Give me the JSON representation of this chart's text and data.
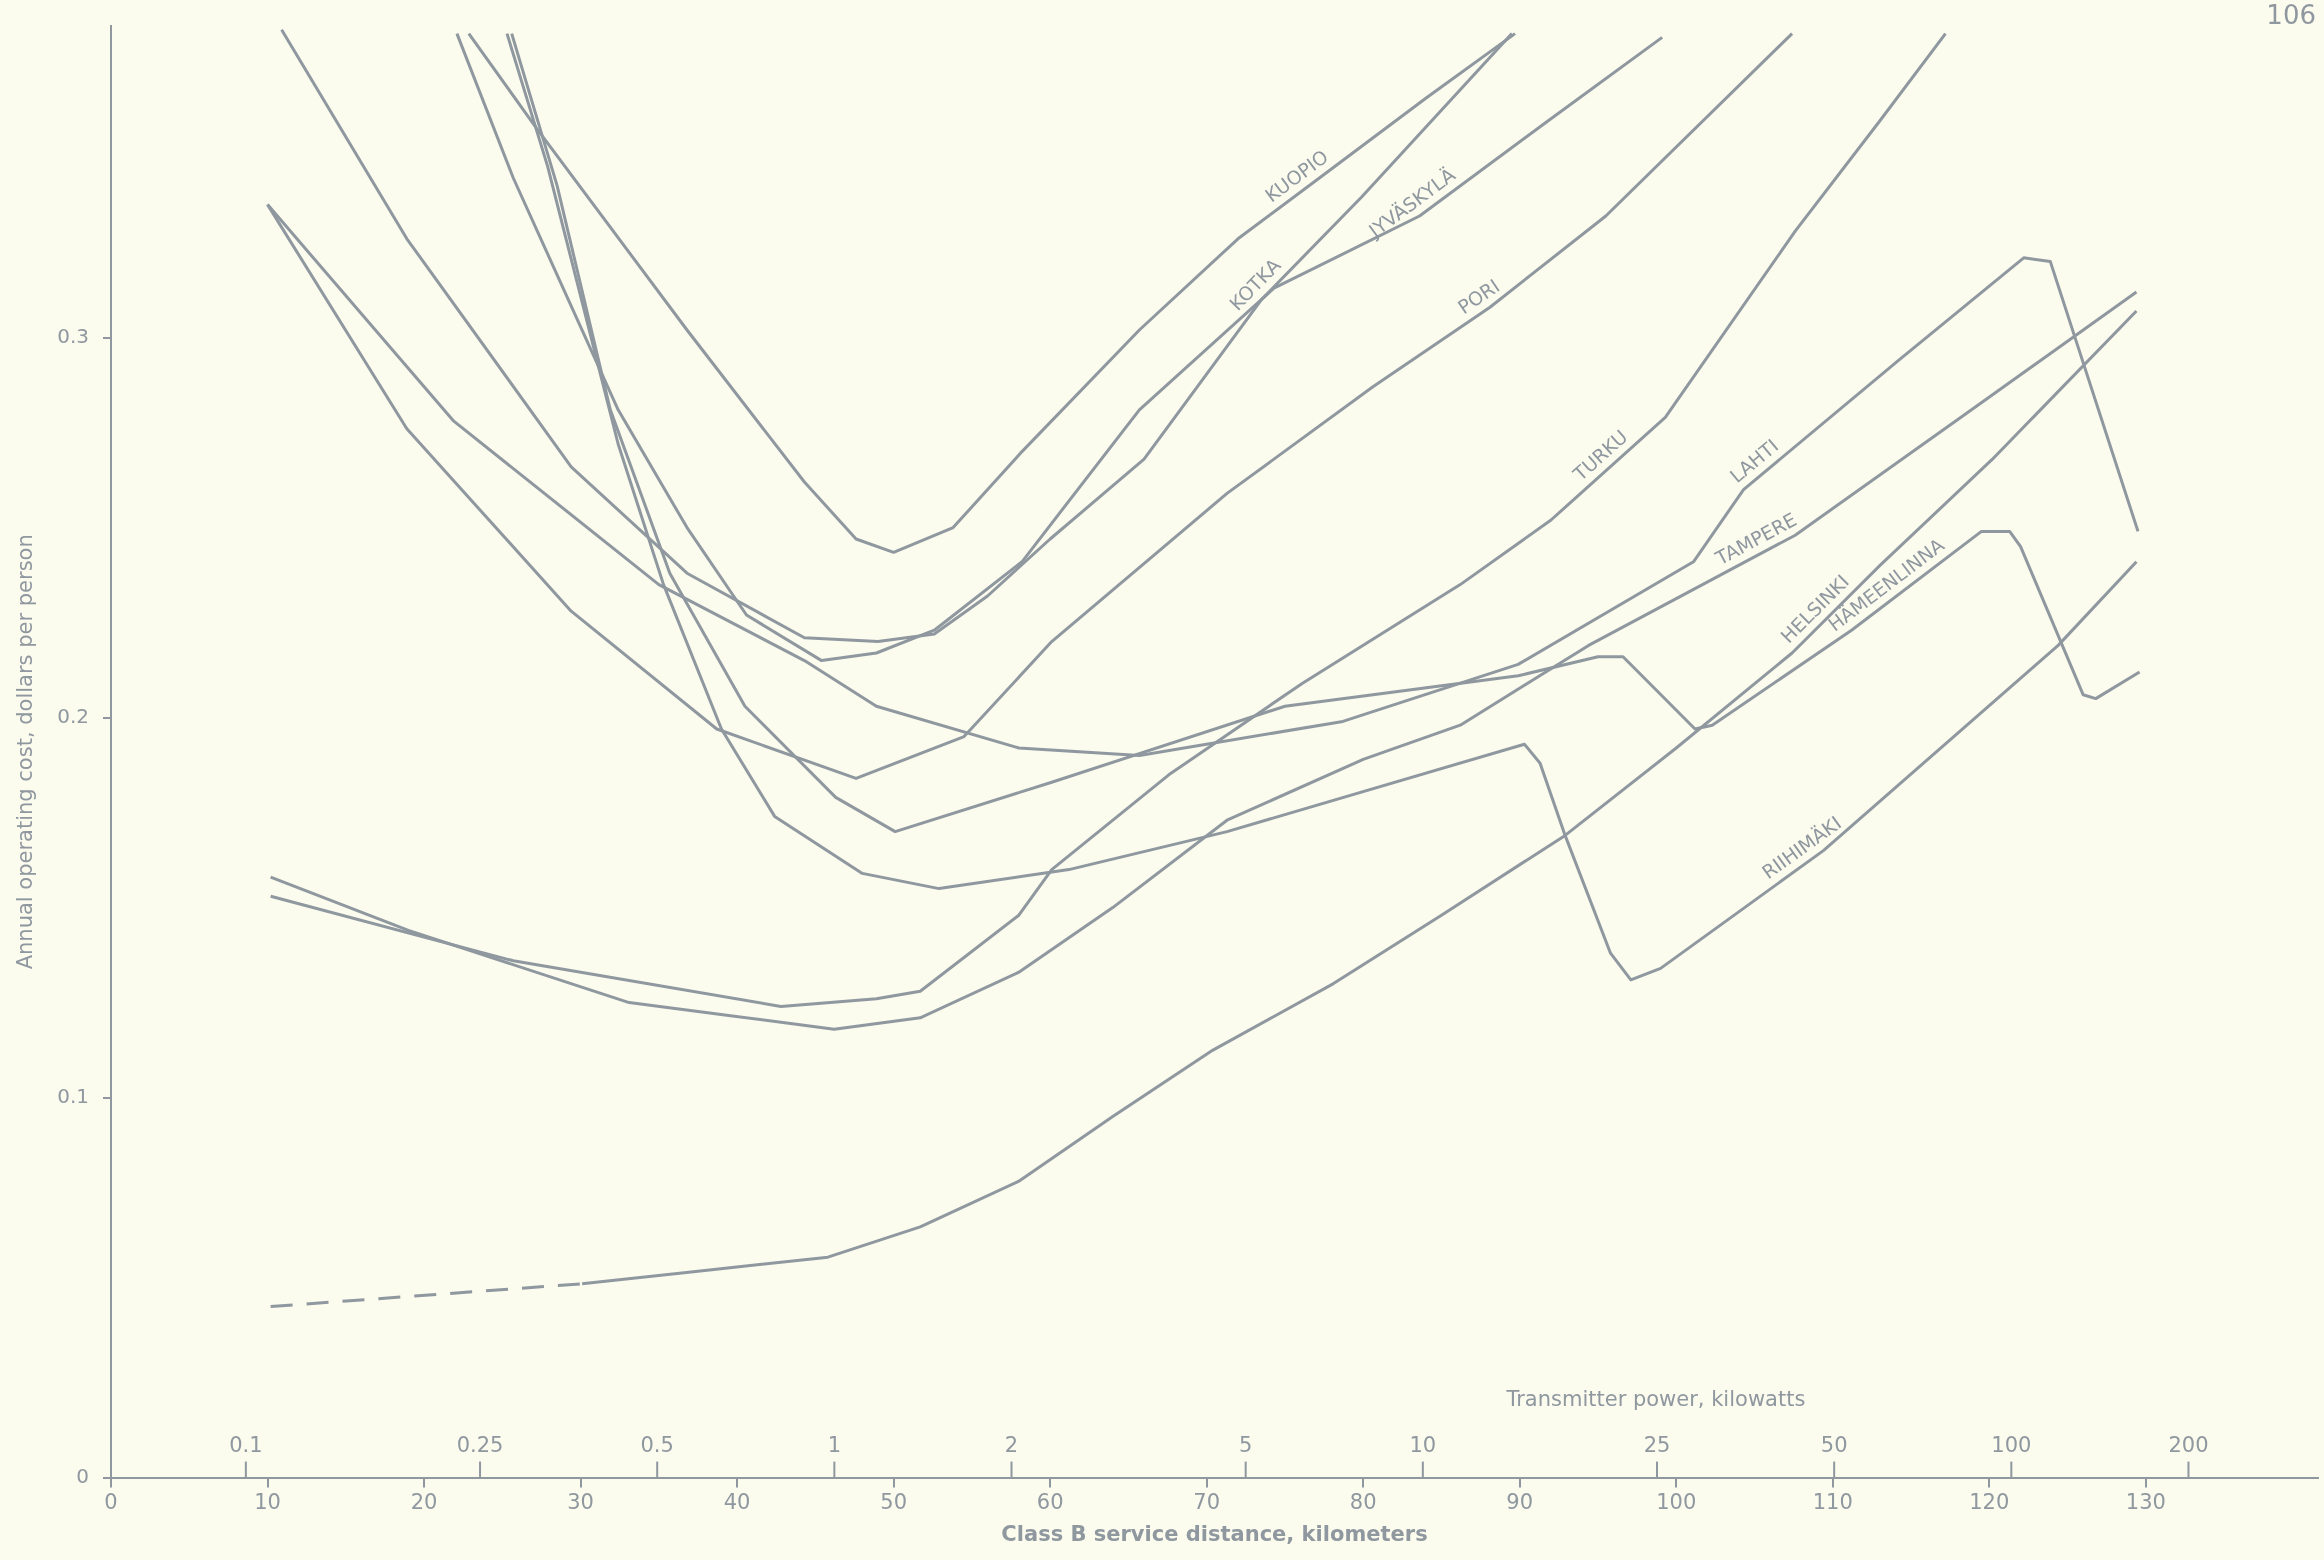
{
  "chart_data": {
    "type": "line",
    "xlabel": "Class B service distance, kilometers",
    "ylabel": "Annual operating cost, dollars per person",
    "x2label": "Transmitter power, kilowatts",
    "xlim": [
      0,
      141
    ],
    "xticks": [
      0,
      10,
      20,
      30,
      40,
      50,
      60,
      70,
      80,
      90,
      100,
      110,
      120,
      130
    ],
    "x2lim": [
      0.059,
      332
    ],
    "x2ticks": [
      0.1,
      0.25,
      0.5,
      1,
      2,
      5,
      10,
      25,
      50,
      100,
      200
    ],
    "log": "x2",
    "ylim": [
      0,
      0.382
    ],
    "yticks": [
      0,
      0.1,
      0.2,
      0.3
    ],
    "marker": "none",
    "series": [
      {
        "name": "KUOPIO",
        "color": "#8f979f",
        "x": [
          22.86,
          27.2,
          36.8,
          44.3,
          47.6,
          50.0,
          53.8,
          58.2,
          65.7,
          72.0,
          77.2,
          84.0,
          89.7
        ],
        "values": [
          0.38,
          0.355,
          0.302,
          0.262,
          0.247,
          0.2435,
          0.25,
          0.27,
          0.302,
          0.326,
          0.342,
          0.363,
          0.38
        ]
      },
      {
        "name": "KOTKA",
        "color": "#8f979f",
        "x": [
          10.9,
          18.9,
          29.4,
          36.8,
          44.3,
          49.0,
          52.6,
          56,
          60,
          66,
          73.5,
          79.9,
          89.5
        ],
        "values": [
          0.381,
          0.326,
          0.266,
          0.238,
          0.221,
          0.22,
          0.222,
          0.232,
          0.247,
          0.268,
          0.31,
          0.337,
          0.38
        ]
      },
      {
        "name": "JYVÄSKYLÄ",
        "color": "#8f979f",
        "x": [
          22.1,
          25.7,
          32.4,
          36.8,
          40.6,
          45.4,
          48.9,
          52.6,
          58.2,
          65.7,
          74.3,
          83.6,
          91.8,
          99.1
        ],
        "values": [
          0.38,
          0.342,
          0.281,
          0.25,
          0.227,
          0.215,
          0.217,
          0.223,
          0.241,
          0.281,
          0.313,
          0.332,
          0.357,
          0.379
        ]
      },
      {
        "name": "PORI",
        "color": "#8f979f",
        "x": [
          10,
          18.9,
          29.4,
          38.7,
          47.6,
          54.5,
          60.1,
          71.3,
          80.6,
          88.1,
          95.5,
          107.4
        ],
        "values": [
          0.335,
          0.276,
          0.228,
          0.197,
          0.184,
          0.195,
          0.22,
          0.259,
          0.287,
          0.308,
          0.332,
          0.38
        ]
      },
      {
        "name": "TURKU",
        "color": "#8f979f",
        "x": [
          10.2,
          25.7,
          42.8,
          48.9,
          51.7,
          58,
          60.1,
          67.6,
          76.1,
          86.2,
          92,
          99.3,
          107.6,
          113,
          117.2
        ],
        "values": [
          0.153,
          0.136,
          0.124,
          0.126,
          0.128,
          0.148,
          0.16,
          0.185,
          0.209,
          0.235,
          0.252,
          0.279,
          0.328,
          0.357,
          0.38
        ]
      },
      {
        "name": "LAHTI",
        "color": "#8f979f",
        "x": [
          10,
          21.9,
          35.0,
          44.3,
          48.9,
          58.0,
          65.7,
          78.7,
          89.9,
          101.1,
          104.3,
          114.2,
          122.2,
          123.9,
          129.5
        ],
        "values": [
          0.335,
          0.278,
          0.235,
          0.215,
          0.203,
          0.192,
          0.19,
          0.199,
          0.214,
          0.241,
          0.26,
          0.294,
          0.321,
          0.32,
          0.249
        ]
      },
      {
        "name": "TAMPERE",
        "color": "#8f979f",
        "x": [
          10.2,
          19,
          33.1,
          46.2,
          51.7,
          58,
          64,
          71.3,
          80,
          86.2,
          94.4,
          107.6,
          119.2,
          129.4
        ],
        "values": [
          0.158,
          0.144,
          0.125,
          0.118,
          0.121,
          0.133,
          0.15,
          0.173,
          0.189,
          0.198,
          0.219,
          0.248,
          0.282,
          0.312
        ]
      },
      {
        "color": "#8f979f",
        "line_style": "dashed",
        "x": [
          10.2,
          30.1
        ],
        "values": [
          0.045,
          0.051
        ]
      },
      {
        "name": "HELSINKI",
        "color": "#8f979f",
        "x": [
          30.1,
          45.8,
          51.7,
          58,
          64,
          70.4,
          78.1,
          85,
          92.9,
          100,
          107.4,
          113,
          120.2,
          129.4
        ],
        "values": [
          0.051,
          0.058,
          0.066,
          0.078,
          0.095,
          0.1125,
          0.13,
          0.148,
          0.169,
          0.192,
          0.217,
          0.24,
          0.268,
          0.307
        ]
      },
      {
        "name": "HÄMEENLINNA",
        "color": "#8f979f",
        "x": [
          25.6,
          28.5,
          31.9,
          35.7,
          40.5,
          46.3,
          50.1,
          60.1,
          75.0,
          89.9,
          95.0,
          96.6,
          101.2,
          102.3,
          111.2,
          119.5,
          121.3,
          122.0,
          126.0,
          126.8,
          129.6
        ],
        "values": [
          0.38,
          0.34,
          0.281,
          0.238,
          0.203,
          0.179,
          0.17,
          0.183,
          0.203,
          0.211,
          0.216,
          0.216,
          0.197,
          0.198,
          0.223,
          0.249,
          0.249,
          0.245,
          0.206,
          0.205,
          0.212
        ]
      },
      {
        "name": "RIIHIMÄKI",
        "color": "#8f979f",
        "x": [
          25.3,
          27.9,
          32.4,
          35.3,
          39.0,
          42.4,
          48.0,
          52.9,
          61.2,
          71.3,
          90.3,
          91.3,
          92.9,
          95.8,
          97.1,
          99.0,
          109.4,
          124.4,
          129.4
        ],
        "values": [
          0.38,
          0.345,
          0.272,
          0.235,
          0.197,
          0.174,
          0.159,
          0.155,
          0.16,
          0.17,
          0.193,
          0.188,
          0.169,
          0.138,
          0.131,
          0.134,
          0.165,
          0.219,
          0.241
        ]
      }
    ],
    "annotations": [
      "106"
    ]
  }
}
